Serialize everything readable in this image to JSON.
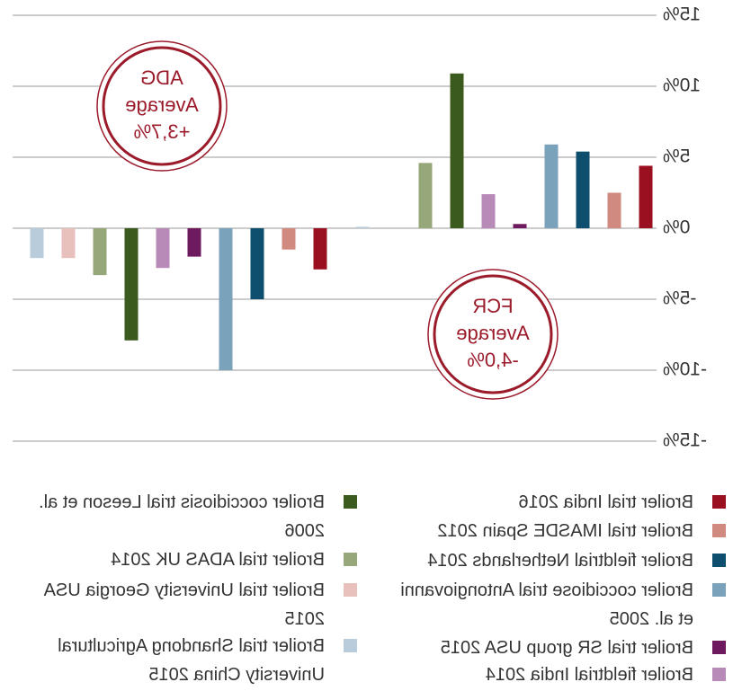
{
  "chart_data": {
    "type": "bar",
    "categories": [
      null,
      null
    ],
    "series": [
      {
        "name": "Broiler trial India 2016",
        "color": "#9b1020",
        "values": [
          4.4,
          -2.9
        ]
      },
      {
        "name": "Broiler trial IMASDE Spain 2012",
        "color": "#d08a80",
        "values": [
          2.5,
          -1.5
        ]
      },
      {
        "name": "Broiler fieldtrial Netherlands 2014",
        "color": "#0e4e6e",
        "values": [
          5.4,
          -5.0
        ]
      },
      {
        "name": "Broiler coccidiose trial Antongiovanni et al. 2005",
        "color": "#7aa3bb",
        "values": [
          5.9,
          -10.0
        ]
      },
      {
        "name": "Broiler trial SR group USA 2015",
        "color": "#6e1a5e",
        "values": [
          0.3,
          -2.0
        ]
      },
      {
        "name": "Broiler fieldtrial India 2014",
        "color": "#b88ab8",
        "values": [
          2.4,
          -2.8
        ]
      },
      {
        "name": "Broiler coccidiosis trial Leeson et al. 2006",
        "color": "#3a5a1e",
        "values": [
          10.9,
          -7.9
        ]
      },
      {
        "name": "Broiler trial ADAS UK 2014",
        "color": "#96a87a",
        "values": [
          4.6,
          -3.3
        ]
      },
      {
        "name": "Broiler trial University Georgia USA 2015",
        "color": "#e8c0bc",
        "values": [
          0,
          -2.1
        ]
      },
      {
        "name": "Broiler trial Shandong Agricultural University China 2015",
        "color": "#b8ccdc",
        "values": [
          0.1,
          -2.1
        ]
      }
    ],
    "ylim": [
      -15,
      15
    ],
    "yticks": [
      {
        "value": -15,
        "label": "-15%"
      },
      {
        "value": -10,
        "label": "-10%"
      },
      {
        "value": -5,
        "label": "-5%"
      },
      {
        "value": 0,
        "label": "0%"
      },
      {
        "value": 5,
        "label": "5%"
      },
      {
        "value": 10,
        "label": "10%"
      },
      {
        "value": 15,
        "label": "15%"
      }
    ],
    "grid": true,
    "annotations": [
      {
        "lines": [
          "ADG",
          "Average",
          "+3,7%"
        ]
      },
      {
        "lines": [
          "FCR",
          "Average",
          "-4,0%"
        ]
      }
    ]
  }
}
